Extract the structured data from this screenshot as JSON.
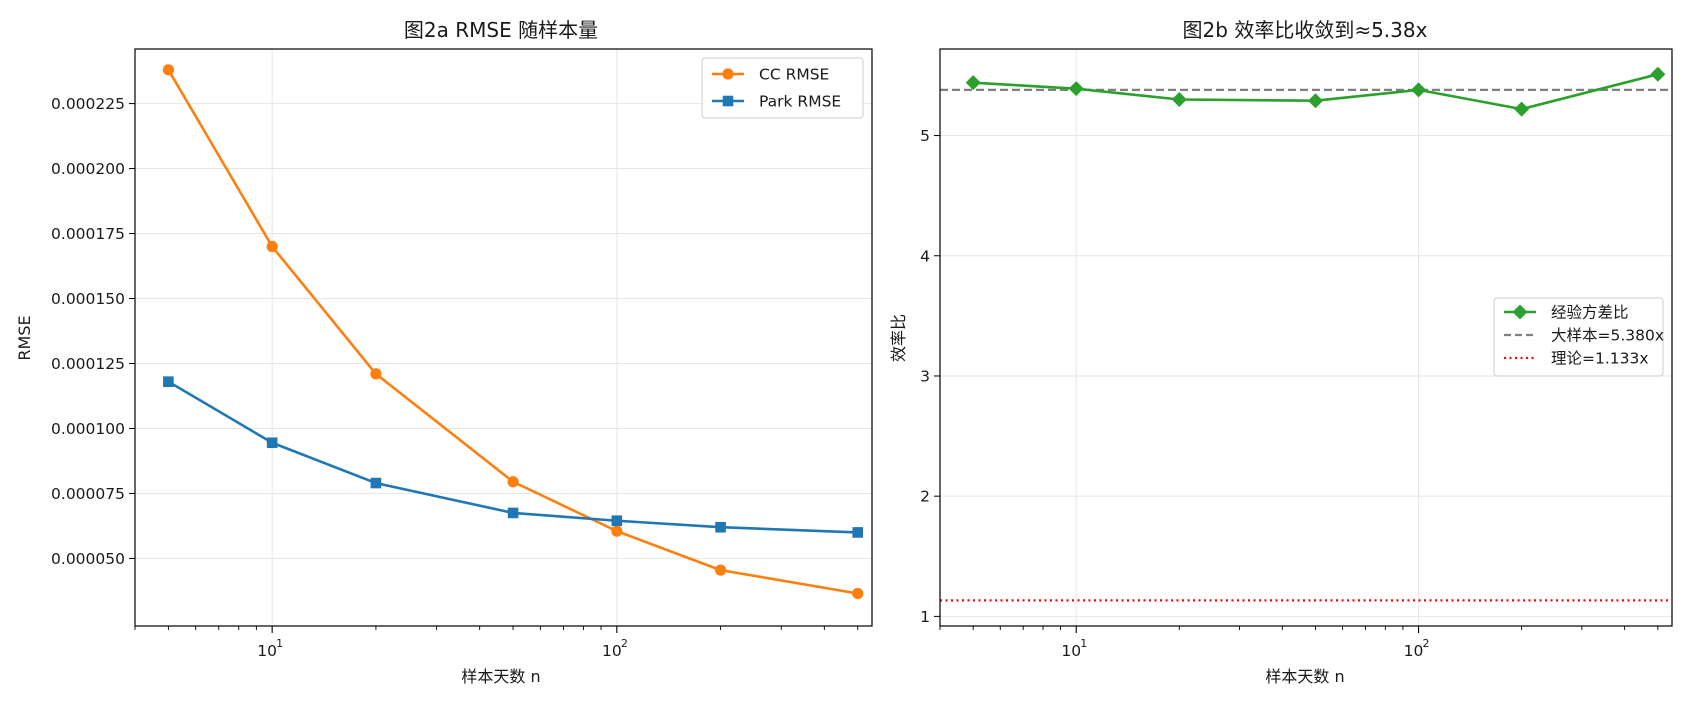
{
  "chart_data": [
    {
      "type": "line",
      "title": "图2a  RMSE 随样本量",
      "xlabel": "样本天数 n",
      "ylabel": "RMSE",
      "xscale": "log",
      "xlim": [
        4,
        550
      ],
      "ylim": [
        2.4e-05,
        0.000246
      ],
      "x": [
        5,
        10,
        20,
        50,
        100,
        200,
        500
      ],
      "x_ticks": [
        {
          "value": 10,
          "label": "10",
          "exp": "1"
        },
        {
          "value": 100,
          "label": "10",
          "exp": "2"
        }
      ],
      "y_ticks": [
        "0.000050",
        "0.000075",
        "0.000100",
        "0.000125",
        "0.000150",
        "0.000175",
        "0.000200",
        "0.000225"
      ],
      "grid": true,
      "legend_position": "top-right",
      "series": [
        {
          "name": "CC RMSE",
          "color": "#ff7f0e",
          "marker": "circle",
          "values": [
            0.000238,
            0.00017,
            0.000121,
            7.95e-05,
            6.05e-05,
            4.55e-05,
            3.65e-05
          ]
        },
        {
          "name": "Park RMSE",
          "color": "#1f77b4",
          "marker": "square",
          "values": [
            0.000118,
            9.45e-05,
            7.9e-05,
            6.75e-05,
            6.45e-05,
            6.2e-05,
            6e-05
          ]
        }
      ]
    },
    {
      "type": "line",
      "title": "图2b  效率比收敛到≈5.38x",
      "xlabel": "样本天数 n",
      "ylabel": "效率比",
      "xscale": "log",
      "xlim": [
        4,
        550
      ],
      "ylim": [
        0.92,
        5.72
      ],
      "x": [
        5,
        10,
        20,
        50,
        100,
        200,
        500
      ],
      "x_ticks": [
        {
          "value": 10,
          "label": "10",
          "exp": "1"
        },
        {
          "value": 100,
          "label": "10",
          "exp": "2"
        }
      ],
      "y_ticks": [
        "1",
        "2",
        "3",
        "4",
        "5"
      ],
      "grid": true,
      "legend_position": "center-right",
      "series": [
        {
          "name": "经验方差比",
          "color": "#2ca02c",
          "marker": "diamond",
          "values": [
            5.44,
            5.39,
            5.3,
            5.29,
            5.38,
            5.22,
            5.51
          ]
        }
      ],
      "reference_lines": [
        {
          "name": "大样本=5.380x",
          "value": 5.38,
          "color": "#808080",
          "style": "dashed"
        },
        {
          "name": "理论=1.133x",
          "value": 1.133,
          "color": "#ff0000",
          "style": "dotted"
        }
      ]
    }
  ]
}
